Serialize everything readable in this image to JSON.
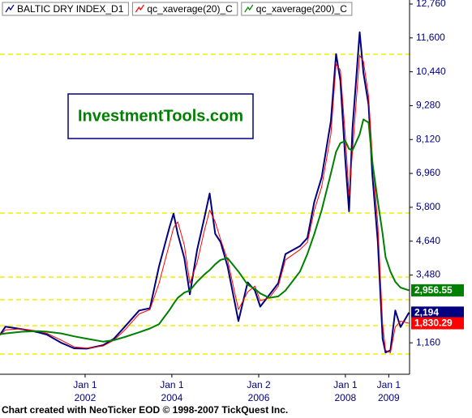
{
  "chart_data": {
    "type": "line",
    "title": "InvestmentTools.com",
    "footer": "Chart created with NeoTicker EOD © 1998-2007 TickQuest Inc.",
    "x": [
      "2000-01-15",
      "2000-03-01",
      "2000-07-15",
      "2000-12-01",
      "2001-02-15",
      "2001-06-15",
      "2001-10-01",
      "2002-01-15",
      "2002-06-01",
      "2002-09-01",
      "2002-12-01",
      "2003-04-01",
      "2003-07-01",
      "2003-09-15",
      "2003-12-15",
      "2004-01-15",
      "2004-02-20",
      "2004-04-15",
      "2004-06-01",
      "2004-08-01",
      "2004-10-01",
      "2004-11-15",
      "2005-01-01",
      "2005-02-15",
      "2005-04-15",
      "2005-07-15",
      "2005-10-01",
      "2005-12-01",
      "2006-01-15",
      "2006-04-01",
      "2006-06-15",
      "2006-08-15",
      "2006-12-15",
      "2007-02-15",
      "2007-04-15",
      "2007-06-15",
      "2007-09-01",
      "2007-10-15",
      "2007-11-20",
      "2008-01-01",
      "2008-02-01",
      "2008-03-01",
      "2008-05-01",
      "2008-06-01",
      "2008-07-15",
      "2008-08-15",
      "2008-10-01",
      "2008-11-10",
      "2008-12-05",
      "2009-01-15",
      "2009-02-25",
      "2009-04-10",
      "2009-06-20"
    ],
    "series": [
      {
        "name": "BALTIC DRY INDEX_D1",
        "color": "#000080",
        "width": 2,
        "last_label": "2,194",
        "values": [
          1435,
          1710,
          1630,
          1520,
          1440,
          1160,
          970,
          960,
          1080,
          1300,
          1710,
          2265,
          2345,
          3780,
          5160,
          5580,
          4890,
          4060,
          2820,
          4336,
          5440,
          6270,
          4890,
          4610,
          3780,
          1905,
          3230,
          2955,
          2400,
          2800,
          3200,
          4200,
          4470,
          4750,
          5990,
          6820,
          8755,
          11047,
          10136,
          7374,
          5660,
          8480,
          11793,
          10410,
          9308,
          6960,
          4610,
          1298,
          828,
          900,
          2265,
          1700,
          2194
        ]
      },
      {
        "name": "qc_xaverage(20)_C",
        "color": "#ff0000",
        "width": 1,
        "last_label": "1,830.29",
        "values": [
          1420,
          1600,
          1640,
          1560,
          1480,
          1250,
          1020,
          980,
          1050,
          1250,
          1600,
          2150,
          2300,
          3200,
          4600,
          5100,
          5300,
          4500,
          3200,
          3900,
          5000,
          5700,
          5300,
          4700,
          4000,
          2300,
          2900,
          3100,
          2600,
          2700,
          3100,
          4000,
          4350,
          4600,
          5700,
          6500,
          8300,
          10700,
          10500,
          8200,
          6200,
          7700,
          11000,
          10800,
          9600,
          7600,
          5200,
          1800,
          900,
          820,
          1700,
          1900,
          1830.29
        ]
      },
      {
        "name": "qc_xaverage(200)_C",
        "color": "#008000",
        "width": 2,
        "last_label": "2,956.55",
        "values": [
          1450,
          1480,
          1540,
          1560,
          1540,
          1480,
          1380,
          1300,
          1200,
          1250,
          1360,
          1520,
          1650,
          1800,
          2300,
          2500,
          2700,
          2880,
          2950,
          3250,
          3500,
          3650,
          3850,
          4000,
          4060,
          3600,
          3150,
          3000,
          2850,
          2700,
          2750,
          2950,
          3600,
          4200,
          4890,
          5700,
          6960,
          7700,
          8000,
          8065,
          7800,
          7750,
          8300,
          8810,
          8700,
          7374,
          6000,
          4890,
          4100,
          3600,
          3250,
          3050,
          2956.55
        ]
      }
    ],
    "xlim": [
      "2000-01-15",
      "2009-06-25"
    ],
    "xticks": [
      {
        "value": "2002-01-01",
        "label": "Jan 1",
        "year": "2002"
      },
      {
        "value": "2004-01-01",
        "label": "Jan 1",
        "year": "2004"
      },
      {
        "value": "2006-01-02",
        "label": "Jan 2",
        "year": "2006"
      },
      {
        "value": "2008-01-01",
        "label": "Jan 1",
        "year": "2008"
      },
      {
        "value": "2009-01-01",
        "label": "Jan 1",
        "year": "2009"
      }
    ],
    "ylim": [
      83,
      12898
    ],
    "yticks": [
      {
        "value": 1160,
        "label": "1,160"
      },
      {
        "value": 3480,
        "label": "3,480"
      },
      {
        "value": 4640,
        "label": "4,640"
      },
      {
        "value": 5800,
        "label": "5,800"
      },
      {
        "value": 6960,
        "label": "6,960"
      },
      {
        "value": 8120,
        "label": "8,120"
      },
      {
        "value": 9280,
        "label": "9,280"
      },
      {
        "value": 10440,
        "label": "10,440"
      },
      {
        "value": 11600,
        "label": "11,600"
      },
      {
        "value": 12760,
        "label": "12,760"
      }
    ]
  }
}
